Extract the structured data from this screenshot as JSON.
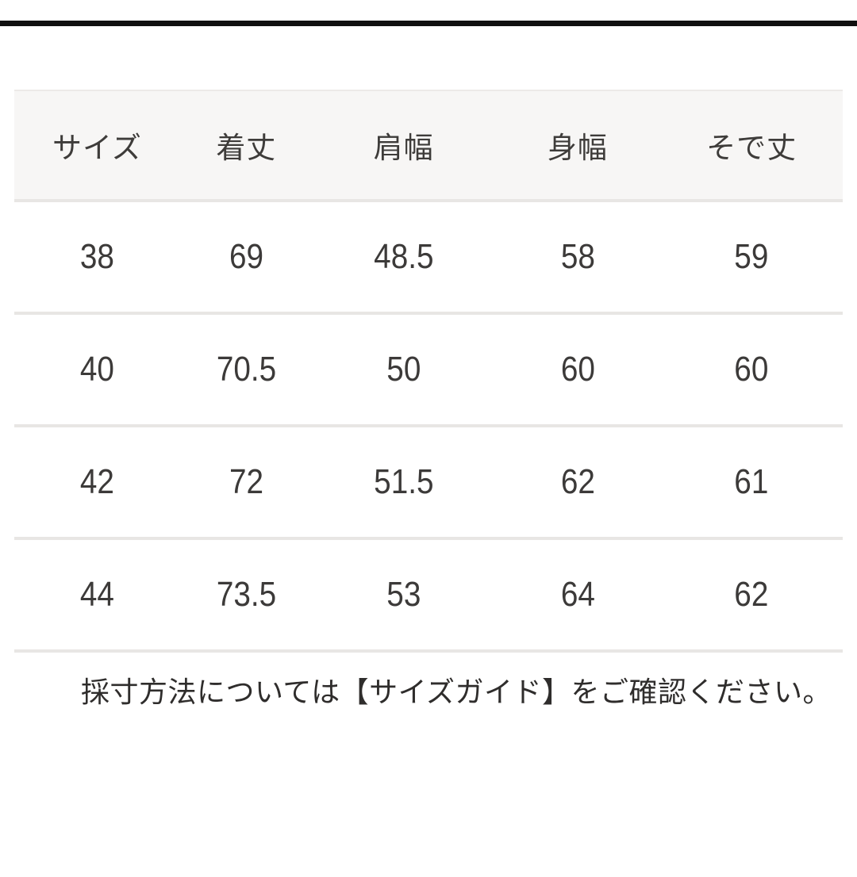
{
  "top_bar": {
    "color": "#101010"
  },
  "size_table": {
    "headers": [
      "サイズ",
      "着丈",
      "肩幅",
      "身幅",
      "そで丈"
    ],
    "rows": [
      [
        "38",
        "69",
        "48.5",
        "58",
        "59"
      ],
      [
        "40",
        "70.5",
        "50",
        "60",
        "60"
      ],
      [
        "42",
        "72",
        "51.5",
        "62",
        "61"
      ],
      [
        "44",
        "73.5",
        "53",
        "64",
        "62"
      ]
    ]
  },
  "footer": {
    "note": "採寸方法については【サイズガイド】をご確認ください。"
  },
  "colors": {
    "header_background": "#f7f6f5",
    "divider": "#e8e6e4",
    "text": "#3c3a39",
    "top_bar": "#101010"
  }
}
